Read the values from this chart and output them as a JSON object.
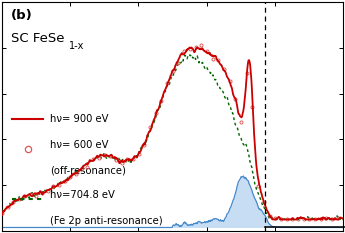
{
  "title_line1": "(b)",
  "title_line2": "SC FeSe",
  "title_subscript": "1-x",
  "background_color": "#ffffff",
  "dashed_line_x": 0.77,
  "red_color": "#cc0000",
  "circle_color": "#dd5555",
  "green_color": "#006600",
  "blue_color": "#4488cc",
  "blue_fill_color": "#aaccee",
  "legend": [
    {
      "label": "hν= 900 eV",
      "color": "#cc0000",
      "style": "solid"
    },
    {
      "label": "hν= 600 eV\n(off-resonance)",
      "color": "#dd5555",
      "style": "circle"
    },
    {
      "label": "hν=704.8 eV\n(Fe 2p anti-resonance)",
      "color": "#006600",
      "style": "dotted"
    }
  ]
}
